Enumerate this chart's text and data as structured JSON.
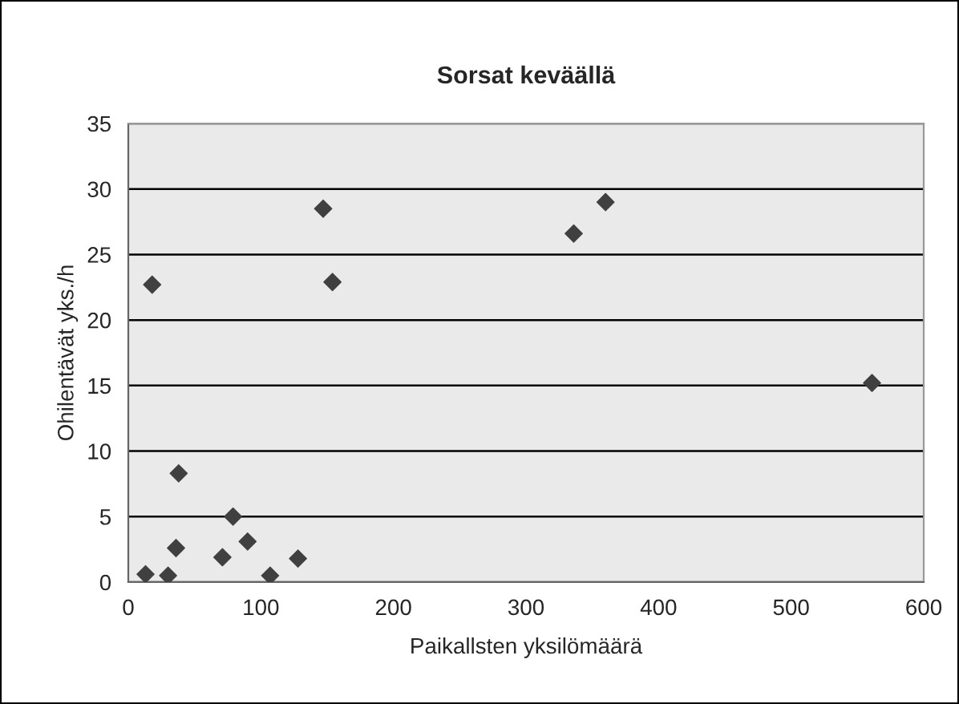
{
  "chart_data": {
    "type": "scatter",
    "title": "Sorsat keväällä",
    "xlabel": "Paikallsten yksilömäärä",
    "ylabel": "Ohilentävät yks./h",
    "x": [
      13,
      18,
      30,
      36,
      38,
      71,
      79,
      90,
      107,
      128,
      147,
      154,
      336,
      360,
      561
    ],
    "series": [
      {
        "color": "#404040",
        "values": [
          0.6,
          22.7,
          0.5,
          2.6,
          8.3,
          1.9,
          5.0,
          3.1,
          0.5,
          1.8,
          28.5,
          22.9,
          26.6,
          29.0,
          15.2
        ]
      }
    ],
    "xlim": [
      0,
      600
    ],
    "ylim": [
      0,
      35
    ],
    "xticks": [
      0,
      100,
      200,
      300,
      400,
      500,
      600
    ],
    "yticks": [
      0,
      5,
      10,
      15,
      20,
      25,
      30,
      35
    ],
    "grid": "y",
    "marker": "diamond",
    "legend": false
  }
}
